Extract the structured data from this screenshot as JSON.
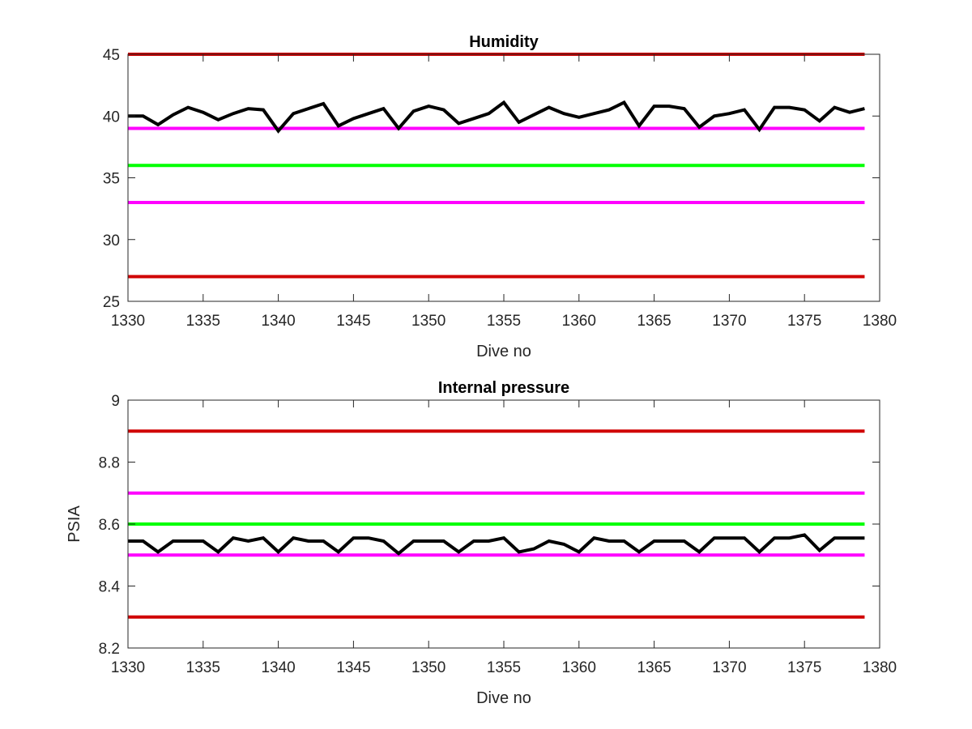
{
  "chart_data": [
    {
      "type": "line",
      "title": "Humidity",
      "xlabel": "Dive no",
      "ylabel": "",
      "xlim": [
        1330,
        1380
      ],
      "ylim": [
        25,
        45
      ],
      "xticks": [
        1330,
        1335,
        1340,
        1345,
        1350,
        1355,
        1360,
        1365,
        1370,
        1375,
        1380
      ],
      "yticks": [
        25,
        30,
        35,
        40,
        45
      ],
      "grid": false,
      "reference_lines": [
        {
          "y": 45,
          "color": "#d00000"
        },
        {
          "y": 39,
          "color": "#ff00ff"
        },
        {
          "y": 36,
          "color": "#00ff00"
        },
        {
          "y": 33,
          "color": "#ff00ff"
        },
        {
          "y": 27,
          "color": "#d00000"
        }
      ],
      "series": [
        {
          "color": "#000000",
          "x": [
            1330,
            1331,
            1332,
            1333,
            1334,
            1335,
            1336,
            1337,
            1338,
            1339,
            1340,
            1341,
            1342,
            1343,
            1344,
            1345,
            1346,
            1347,
            1348,
            1349,
            1350,
            1351,
            1352,
            1353,
            1354,
            1355,
            1356,
            1357,
            1358,
            1359,
            1360,
            1361,
            1362,
            1363,
            1364,
            1365,
            1366,
            1367,
            1368,
            1369,
            1370,
            1371,
            1372,
            1373,
            1374,
            1375,
            1376,
            1377,
            1378,
            1379
          ],
          "y": [
            40.0,
            40.0,
            39.3,
            40.1,
            40.7,
            40.3,
            39.7,
            40.2,
            40.6,
            40.5,
            38.8,
            40.2,
            40.6,
            41.0,
            39.2,
            39.8,
            40.2,
            40.6,
            39.0,
            40.4,
            40.8,
            40.5,
            39.4,
            39.8,
            40.2,
            41.1,
            39.5,
            40.1,
            40.7,
            40.2,
            39.9,
            40.2,
            40.5,
            41.1,
            39.2,
            40.8,
            40.8,
            40.6,
            39.1,
            40.0,
            40.2,
            40.5,
            38.9,
            40.7,
            40.7,
            40.5,
            39.6,
            40.7,
            40.3,
            40.6
          ]
        }
      ]
    },
    {
      "type": "line",
      "title": "Internal pressure",
      "xlabel": "Dive no",
      "ylabel": "PSIA",
      "xlim": [
        1330,
        1380
      ],
      "ylim": [
        8.2,
        9.0
      ],
      "xticks": [
        1330,
        1335,
        1340,
        1345,
        1350,
        1355,
        1360,
        1365,
        1370,
        1375,
        1380
      ],
      "yticks": [
        8.2,
        8.4,
        8.6,
        8.8,
        9.0
      ],
      "ytick_labels": [
        "8.2",
        "8.4",
        "8.6",
        "8.8",
        "9"
      ],
      "grid": false,
      "reference_lines": [
        {
          "y": 8.9,
          "color": "#d00000"
        },
        {
          "y": 8.7,
          "color": "#ff00ff"
        },
        {
          "y": 8.6,
          "color": "#00ff00"
        },
        {
          "y": 8.5,
          "color": "#ff00ff"
        },
        {
          "y": 8.3,
          "color": "#d00000"
        }
      ],
      "series": [
        {
          "color": "#000000",
          "x": [
            1330,
            1331,
            1332,
            1333,
            1334,
            1335,
            1336,
            1337,
            1338,
            1339,
            1340,
            1341,
            1342,
            1343,
            1344,
            1345,
            1346,
            1347,
            1348,
            1349,
            1350,
            1351,
            1352,
            1353,
            1354,
            1355,
            1356,
            1357,
            1358,
            1359,
            1360,
            1361,
            1362,
            1363,
            1364,
            1365,
            1366,
            1367,
            1368,
            1369,
            1370,
            1371,
            1372,
            1373,
            1374,
            1375,
            1376,
            1377,
            1378,
            1379
          ],
          "y": [
            8.545,
            8.545,
            8.51,
            8.545,
            8.545,
            8.545,
            8.51,
            8.555,
            8.545,
            8.555,
            8.51,
            8.555,
            8.545,
            8.545,
            8.51,
            8.555,
            8.555,
            8.545,
            8.505,
            8.545,
            8.545,
            8.545,
            8.51,
            8.545,
            8.545,
            8.555,
            8.51,
            8.52,
            8.545,
            8.535,
            8.51,
            8.555,
            8.545,
            8.545,
            8.51,
            8.545,
            8.545,
            8.545,
            8.51,
            8.555,
            8.555,
            8.555,
            8.51,
            8.555,
            8.555,
            8.565,
            8.515,
            8.555,
            8.555,
            8.555
          ]
        }
      ]
    }
  ]
}
